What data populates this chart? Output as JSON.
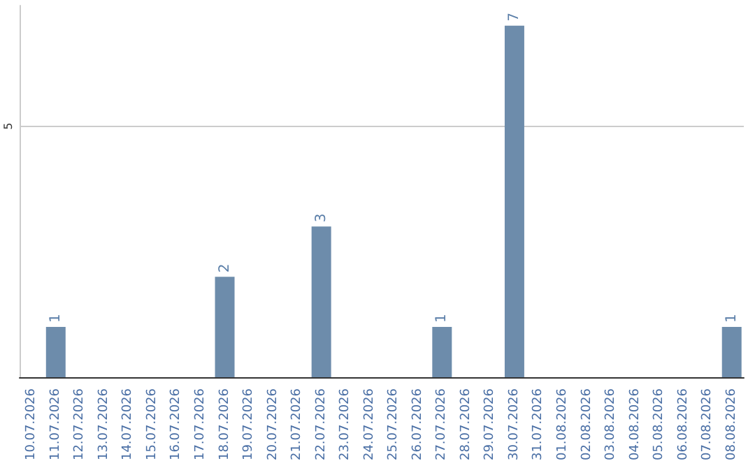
{
  "chart_data": {
    "type": "bar",
    "categories": [
      "10.07.2026",
      "11.07.2026",
      "12.07.2026",
      "13.07.2026",
      "14.07.2026",
      "15.07.2026",
      "16.07.2026",
      "17.07.2026",
      "18.07.2026",
      "19.07.2026",
      "20.07.2026",
      "21.07.2026",
      "22.07.2026",
      "23.07.2026",
      "24.07.2026",
      "25.07.2026",
      "26.07.2026",
      "27.07.2026",
      "28.07.2026",
      "29.07.2026",
      "30.07.2026",
      "31.07.2026",
      "01.08.2026",
      "02.08.2026",
      "03.08.2026",
      "04.08.2026",
      "05.08.2026",
      "06.08.2026",
      "07.08.2026",
      "08.08.2026"
    ],
    "values": [
      0,
      1,
      0,
      0,
      0,
      0,
      0,
      0,
      2,
      0,
      0,
      0,
      3,
      0,
      0,
      0,
      0,
      1,
      0,
      0,
      7,
      0,
      0,
      0,
      0,
      0,
      0,
      0,
      0,
      1
    ],
    "value_labels": [
      null,
      "1",
      null,
      null,
      null,
      null,
      null,
      null,
      "2",
      null,
      null,
      null,
      "3",
      null,
      null,
      null,
      null,
      "1",
      null,
      null,
      "7",
      null,
      null,
      null,
      null,
      null,
      null,
      null,
      null,
      "1"
    ],
    "color": "#6d8cab",
    "ylim": [
      0,
      7.4
    ],
    "yticks": [
      5
    ],
    "grid": "y"
  }
}
